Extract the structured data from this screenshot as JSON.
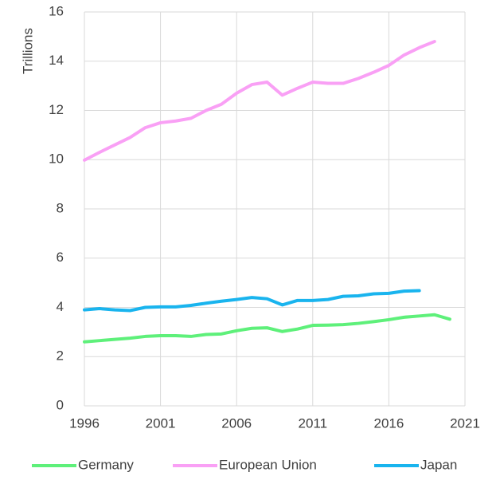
{
  "chart_data": {
    "type": "line",
    "y_label": "Trillions",
    "x": [
      1996,
      1997,
      1998,
      1999,
      2000,
      2001,
      2002,
      2003,
      2004,
      2005,
      2006,
      2007,
      2008,
      2009,
      2010,
      2011,
      2012,
      2013,
      2014,
      2015,
      2016,
      2017,
      2018,
      2019,
      2020
    ],
    "series": [
      {
        "name": "Germany",
        "color": "#5ef07a",
        "values": [
          2.6,
          2.65,
          2.7,
          2.75,
          2.82,
          2.85,
          2.85,
          2.82,
          2.9,
          2.92,
          3.05,
          3.15,
          3.17,
          3.02,
          3.12,
          3.27,
          3.28,
          3.3,
          3.35,
          3.42,
          3.5,
          3.6,
          3.65,
          3.7,
          3.52
        ]
      },
      {
        "name": "European Union",
        "color": "#f9a0f5",
        "values": [
          9.98,
          10.3,
          10.6,
          10.9,
          11.3,
          11.5,
          11.57,
          11.68,
          12.0,
          12.25,
          12.7,
          13.05,
          13.15,
          12.62,
          12.9,
          13.15,
          13.1,
          13.1,
          13.3,
          13.55,
          13.83,
          14.25,
          14.55,
          14.8,
          null
        ]
      },
      {
        "name": "Japan",
        "color": "#19b4ee",
        "values": [
          3.9,
          3.95,
          3.9,
          3.87,
          4.0,
          4.02,
          4.02,
          4.08,
          4.17,
          4.25,
          4.32,
          4.4,
          4.35,
          4.1,
          4.28,
          4.28,
          4.32,
          4.45,
          4.47,
          4.55,
          4.57,
          4.66,
          4.68,
          null,
          null
        ]
      }
    ],
    "xlim": [
      1996,
      2021
    ],
    "xticks": [
      1996,
      2001,
      2006,
      2011,
      2016,
      2021
    ],
    "ylim": [
      0,
      16
    ],
    "yticks": [
      0,
      2,
      4,
      6,
      8,
      10,
      12,
      14,
      16
    ],
    "grid": true,
    "legend": "bottom"
  }
}
